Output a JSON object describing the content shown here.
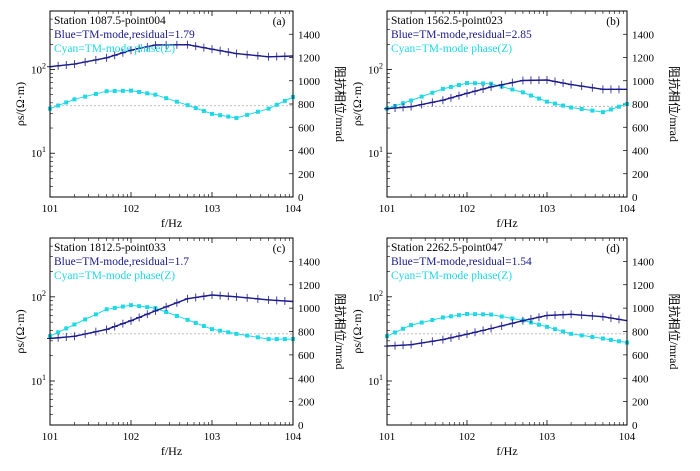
{
  "colors": {
    "tm": "#1a1a8c",
    "phase": "#1fd8e6",
    "axis": "#000000",
    "ref_line": "#aaaaaa"
  },
  "chart_data": [
    {
      "type": "line",
      "panel_label": "(a)",
      "title": "Station 1087.5-point004",
      "legend": [
        "Blue=TM-mode,residual=1.79",
        "Cyan=TM-mode phase(Z)"
      ],
      "xlabel": "f/Hz",
      "ylabel_left": "ρs/(Ω·m)",
      "ylabel_right": "阻抗相位/mrad",
      "x_scale": "log",
      "xlim": [
        10,
        10000
      ],
      "x_ticks": [
        "10¹",
        "10²",
        "10³",
        "10⁴"
      ],
      "y_left_scale": "log",
      "y_left_lim": [
        3,
        500
      ],
      "y_left_ticks": [
        "10¹",
        "10²"
      ],
      "y_right_lim": [
        0,
        1600
      ],
      "y_right_ticks": [
        "0",
        "200",
        "400",
        "600",
        "800",
        "1000",
        "1200",
        "1400"
      ],
      "phase_reference_mrad": 785,
      "series": [
        {
          "name": "TM-mode",
          "axis": "left",
          "x": [
            10,
            20,
            50,
            100,
            200,
            500,
            1000,
            2000,
            5000,
            10000
          ],
          "y": [
            108,
            116,
            138,
            170,
            196,
            198,
            175,
            155,
            142,
            145
          ]
        },
        {
          "name": "TM-mode phase(Z)",
          "axis": "right",
          "x": [
            10,
            20,
            50,
            100,
            200,
            500,
            1000,
            2000,
            5000,
            10000
          ],
          "y": [
            760,
            840,
            910,
            915,
            880,
            790,
            715,
            680,
            760,
            860
          ]
        }
      ]
    },
    {
      "type": "line",
      "panel_label": "(b)",
      "title": "Station 1562.5-point023",
      "legend": [
        "Blue=TM-mode,residual=2.85",
        "Cyan=TM-mode phase(Z)"
      ],
      "xlabel": "f/Hz",
      "ylabel_left": "ρs/(Ω·m)",
      "ylabel_right": "阻抗相位/mrad",
      "x_scale": "log",
      "xlim": [
        10,
        10000
      ],
      "x_ticks": [
        "10¹",
        "10²",
        "10³",
        "10⁴"
      ],
      "y_left_scale": "log",
      "y_left_lim": [
        3,
        500
      ],
      "y_left_ticks": [
        "10¹",
        "10²"
      ],
      "y_right_lim": [
        0,
        1600
      ],
      "y_right_ticks": [
        "0",
        "200",
        "400",
        "600",
        "800",
        "1000",
        "1200",
        "1400"
      ],
      "phase_reference_mrad": 780,
      "series": [
        {
          "name": "TM-mode",
          "axis": "left",
          "x": [
            10,
            20,
            50,
            100,
            200,
            500,
            1000,
            2000,
            5000,
            10000
          ],
          "y": [
            34,
            36,
            43,
            52,
            62,
            74,
            75,
            66,
            58,
            58
          ]
        },
        {
          "name": "TM-mode phase(Z)",
          "axis": "right",
          "x": [
            10,
            20,
            50,
            100,
            200,
            500,
            1000,
            2000,
            5000,
            10000
          ],
          "y": [
            760,
            830,
            930,
            980,
            975,
            900,
            820,
            770,
            730,
            800
          ]
        }
      ]
    },
    {
      "type": "line",
      "panel_label": "(c)",
      "title": "Station 1812.5-point033",
      "legend": [
        "Blue=TM-mode,residual=1.7",
        "Cyan=TM-mode phase(Z)"
      ],
      "xlabel": "f/Hz",
      "ylabel_left": "ρs/(Ω·m)",
      "ylabel_right": "阻抗相位/mrad",
      "x_scale": "log",
      "xlim": [
        10,
        10000
      ],
      "x_ticks": [
        "10¹",
        "10²",
        "10³",
        "10⁴"
      ],
      "y_left_scale": "log",
      "y_left_lim": [
        3,
        500
      ],
      "y_left_ticks": [
        "10¹",
        "10²"
      ],
      "y_right_lim": [
        0,
        1600
      ],
      "y_right_ticks": [
        "0",
        "200",
        "400",
        "600",
        "800",
        "1000",
        "1200",
        "1400"
      ],
      "phase_reference_mrad": 780,
      "series": [
        {
          "name": "TM-mode",
          "axis": "left",
          "x": [
            10,
            20,
            50,
            100,
            200,
            500,
            1000,
            2000,
            5000,
            10000
          ],
          "y": [
            32,
            34,
            41,
            52,
            68,
            95,
            105,
            100,
            92,
            88
          ]
        },
        {
          "name": "TM-mode phase(Z)",
          "axis": "right",
          "x": [
            10,
            20,
            50,
            100,
            200,
            500,
            1000,
            2000,
            5000,
            10000
          ],
          "y": [
            760,
            860,
            990,
            1025,
            1000,
            900,
            820,
            780,
            735,
            735
          ]
        }
      ]
    },
    {
      "type": "line",
      "panel_label": "(d)",
      "title": "Station 2262.5-point047",
      "legend": [
        "Blue=TM-mode,residual=1.54",
        "Cyan=TM-mode phase(Z)"
      ],
      "xlabel": "f/Hz",
      "ylabel_left": "ρs/(Ω·m)",
      "ylabel_right": "阻抗相位/mrad",
      "x_scale": "log",
      "xlim": [
        10,
        10000
      ],
      "x_ticks": [
        "10¹",
        "10²",
        "10³",
        "10⁴"
      ],
      "y_left_scale": "log",
      "y_left_lim": [
        3,
        500
      ],
      "y_left_ticks": [
        "10¹",
        "10²"
      ],
      "y_right_lim": [
        0,
        1600
      ],
      "y_right_ticks": [
        "0",
        "200",
        "400",
        "600",
        "800",
        "1000",
        "1200",
        "1400"
      ],
      "phase_reference_mrad": 780,
      "series": [
        {
          "name": "TM-mode",
          "axis": "left",
          "x": [
            10,
            20,
            50,
            100,
            200,
            500,
            1000,
            2000,
            5000,
            10000
          ],
          "y": [
            26,
            27,
            31,
            36,
            42,
            52,
            60,
            62,
            58,
            52
          ]
        },
        {
          "name": "TM-mode phase(Z)",
          "axis": "right",
          "x": [
            10,
            20,
            50,
            100,
            200,
            500,
            1000,
            2000,
            5000,
            10000
          ],
          "y": [
            760,
            855,
            920,
            950,
            945,
            895,
            840,
            780,
            740,
            705
          ]
        }
      ]
    }
  ]
}
